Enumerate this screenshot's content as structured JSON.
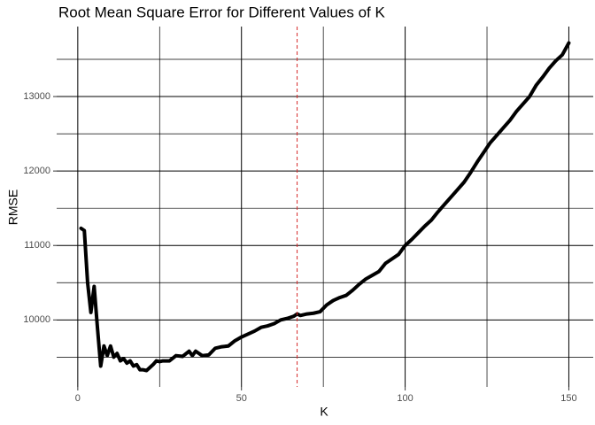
{
  "chart_data": {
    "type": "line",
    "title": "Root Mean Square Error for Different Values of K",
    "x_label": "K",
    "y_label": "RMSE",
    "x": [
      1,
      2,
      3,
      4,
      5,
      6,
      7,
      8,
      9,
      10,
      11,
      12,
      13,
      14,
      15,
      16,
      17,
      18,
      19,
      20,
      21,
      22,
      23,
      24,
      25,
      26,
      28,
      30,
      32,
      34,
      35,
      36,
      38,
      40,
      42,
      44,
      46,
      48,
      50,
      52,
      54,
      56,
      58,
      60,
      62,
      64,
      66,
      67,
      68,
      70,
      72,
      74,
      76,
      78,
      80,
      82,
      84,
      86,
      88,
      90,
      92,
      94,
      96,
      98,
      100,
      102,
      104,
      106,
      108,
      110,
      112,
      114,
      116,
      118,
      120,
      122,
      124,
      126,
      128,
      130,
      132,
      134,
      136,
      138,
      140,
      142,
      144,
      146,
      148,
      150
    ],
    "series": [
      {
        "name": "RMSE",
        "color": "#000000",
        "values": [
          11230,
          11200,
          10500,
          10100,
          10450,
          9900,
          9380,
          9650,
          9520,
          9650,
          9500,
          9550,
          9450,
          9480,
          9420,
          9450,
          9380,
          9400,
          9330,
          9330,
          9320,
          9360,
          9400,
          9450,
          9440,
          9450,
          9450,
          9520,
          9510,
          9580,
          9520,
          9580,
          9520,
          9530,
          9620,
          9640,
          9650,
          9720,
          9770,
          9810,
          9850,
          9900,
          9920,
          9950,
          10000,
          10020,
          10050,
          10080,
          10060,
          10080,
          10090,
          10110,
          10200,
          10260,
          10300,
          10330,
          10400,
          10480,
          10550,
          10600,
          10650,
          10760,
          10820,
          10880,
          11000,
          11080,
          11170,
          11260,
          11340,
          11450,
          11550,
          11650,
          11750,
          11850,
          11980,
          12120,
          12250,
          12380,
          12480,
          12580,
          12680,
          12800,
          12900,
          13000,
          13150,
          13260,
          13380,
          13480,
          13560,
          13720
        ]
      }
    ],
    "xlim": [
      -6.45,
      157.45
    ],
    "ylim": [
      9100,
      13940
    ],
    "xticks": [
      0,
      50,
      100,
      150
    ],
    "yticks": [
      10000,
      11000,
      12000,
      13000
    ],
    "x_minor_breaks": [
      25,
      75,
      125
    ],
    "y_minor_breaks": [
      9500,
      10500,
      11500,
      12500,
      13500
    ],
    "grid": true,
    "grid_color": "#000000",
    "vline": {
      "x": 67,
      "color": "#d62728"
    }
  }
}
